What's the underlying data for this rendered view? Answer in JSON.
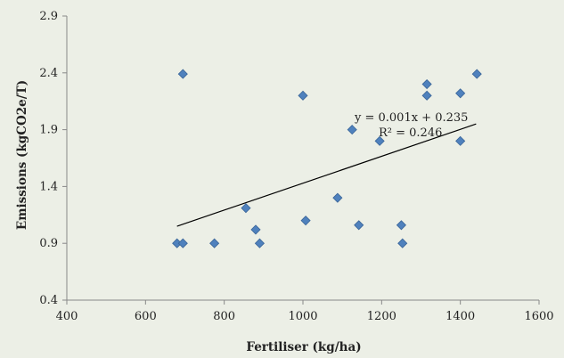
{
  "chart_data": {
    "type": "scatter",
    "title": "",
    "xlabel": "Fertiliser (kg/ha)",
    "ylabel": "Emissions (kgCO2e/T)",
    "xlim": [
      400,
      1600
    ],
    "ylim": [
      0.4,
      2.9
    ],
    "xticks": [
      400,
      600,
      800,
      1000,
      1200,
      1400,
      1600
    ],
    "yticks": [
      0.4,
      0.9,
      1.4,
      1.9,
      2.4,
      2.9
    ],
    "ytick_labels": [
      "0.4",
      "0.9",
      "1.4",
      "1.9",
      "2.4",
      "2.9"
    ],
    "grid": false,
    "legend": "none",
    "colors": {
      "marker": "#4f81bd",
      "marker_edge": "#3a6598",
      "trendline": "#000000",
      "background": "#ecefe6",
      "axis": "#888888"
    },
    "points": [
      {
        "x": 680,
        "y": 0.9
      },
      {
        "x": 695,
        "y": 0.9
      },
      {
        "x": 695,
        "y": 2.39
      },
      {
        "x": 775,
        "y": 0.9
      },
      {
        "x": 855,
        "y": 1.21
      },
      {
        "x": 880,
        "y": 1.02
      },
      {
        "x": 890,
        "y": 0.9
      },
      {
        "x": 1000,
        "y": 2.2
      },
      {
        "x": 1007,
        "y": 1.1
      },
      {
        "x": 1088,
        "y": 1.3
      },
      {
        "x": 1125,
        "y": 1.9
      },
      {
        "x": 1142,
        "y": 1.06
      },
      {
        "x": 1195,
        "y": 1.8
      },
      {
        "x": 1250,
        "y": 1.06
      },
      {
        "x": 1253,
        "y": 0.9
      },
      {
        "x": 1315,
        "y": 2.3
      },
      {
        "x": 1315,
        "y": 2.2
      },
      {
        "x": 1400,
        "y": 2.22
      },
      {
        "x": 1400,
        "y": 1.8
      },
      {
        "x": 1442,
        "y": 2.39
      }
    ],
    "trendline": {
      "x_start": 680,
      "y_start": 1.05,
      "x_end": 1440,
      "y_end": 1.95
    },
    "annotations": [
      "y = 0.001x + 0.235",
      "R² = 0.246"
    ]
  }
}
